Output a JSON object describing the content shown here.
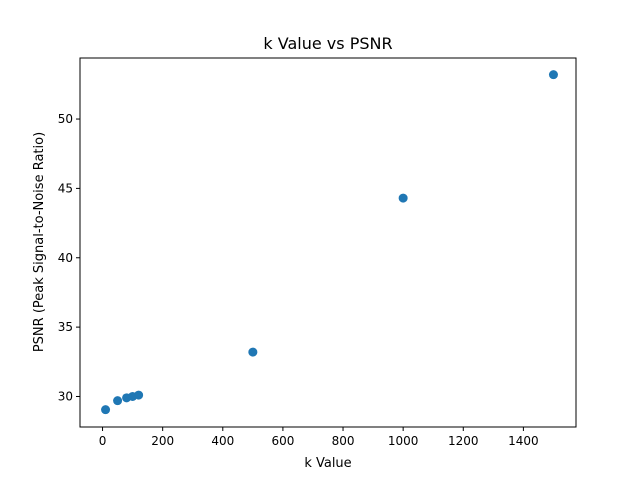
{
  "chart_data": {
    "type": "scatter",
    "title": "k Value vs PSNR",
    "xlabel": "k Value",
    "ylabel": "PSNR (Peak Signal-to-Noise Ratio)",
    "xlim": [
      -75,
      1575
    ],
    "ylim": [
      27.8,
      54.4
    ],
    "xticks": [
      0,
      200,
      400,
      600,
      800,
      1000,
      1200,
      1400
    ],
    "yticks": [
      30,
      35,
      40,
      45,
      50
    ],
    "grid": false,
    "marker_color": "#1f77b4",
    "series": [
      {
        "x": [
          10,
          50,
          80,
          100,
          120,
          500,
          1000,
          1500
        ],
        "y": [
          29.05,
          29.7,
          29.9,
          30.0,
          30.1,
          33.2,
          44.3,
          53.2
        ]
      }
    ]
  }
}
